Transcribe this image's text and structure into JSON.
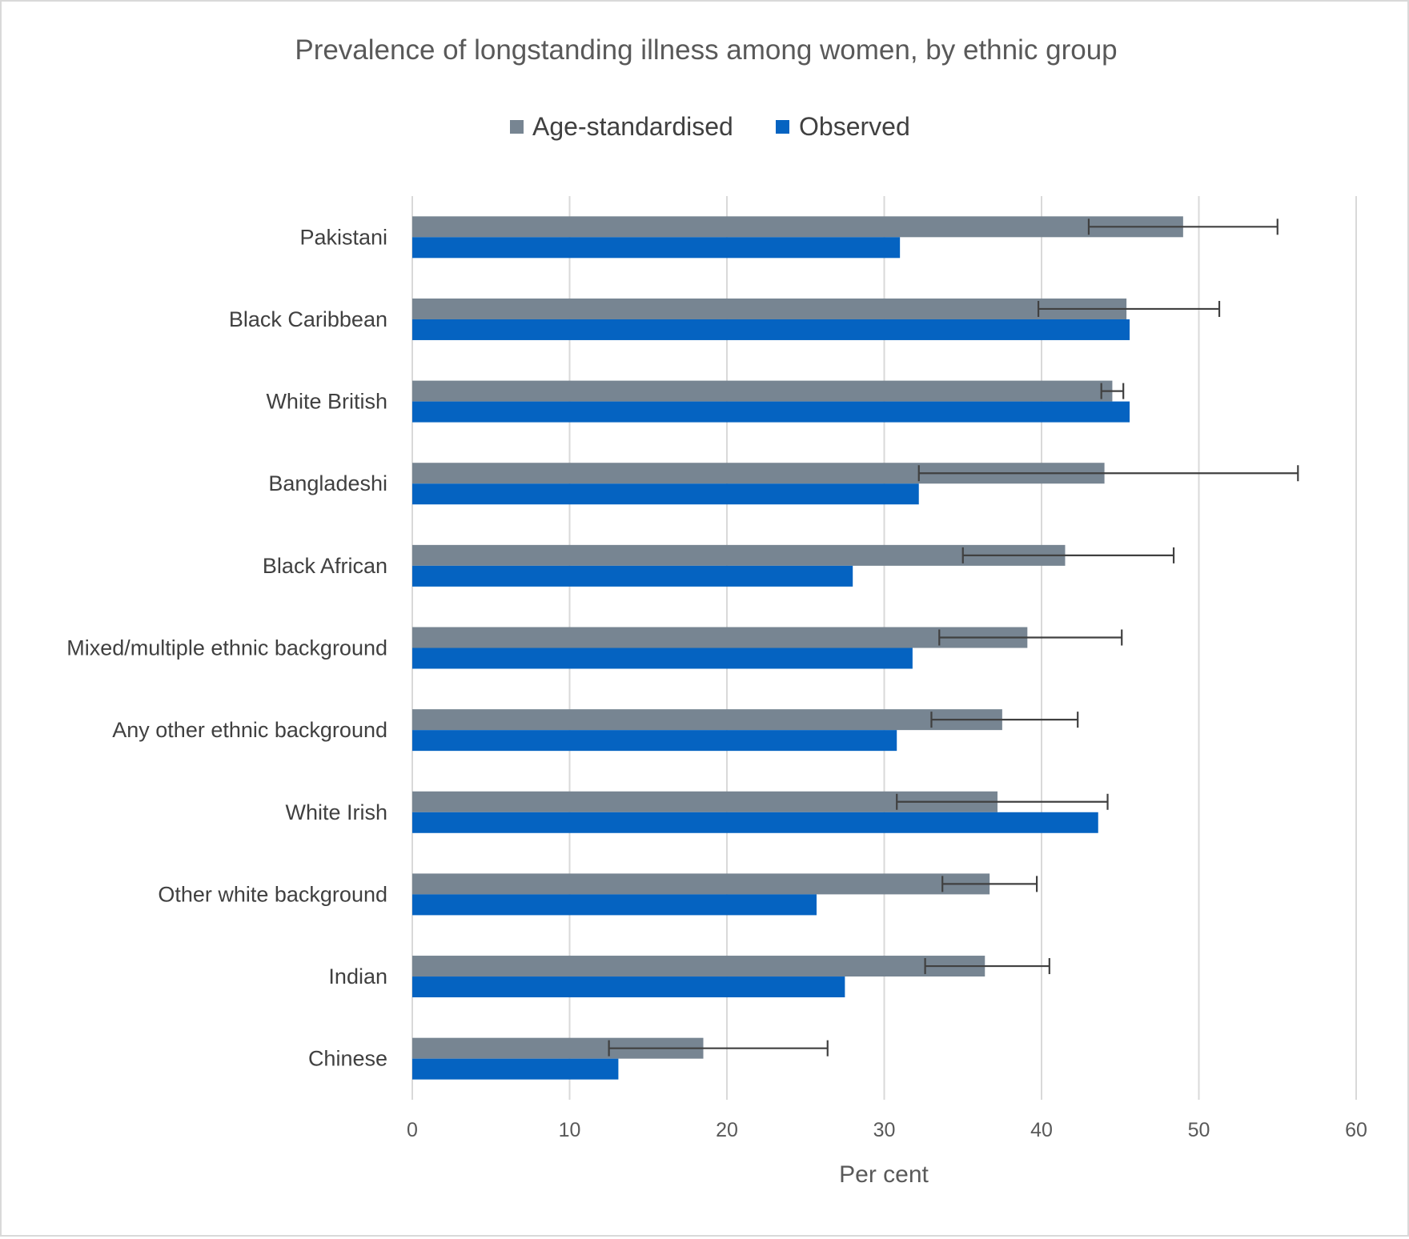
{
  "chart_data": {
    "type": "bar",
    "orientation": "horizontal",
    "title": "Prevalence of longstanding illness among women, by ethnic group",
    "xlabel": "Per cent",
    "ylabel": "",
    "xlim": [
      0,
      60
    ],
    "x_ticks": [
      "0",
      "10",
      "20",
      "30",
      "40",
      "50",
      "60"
    ],
    "grid": true,
    "legend_position": "top",
    "categories": [
      "Pakistani",
      "Black Caribbean",
      "White British",
      "Bangladeshi",
      "Black African",
      "Mixed/multiple ethnic background",
      "Any other ethnic background",
      "White Irish",
      "Other white background",
      "Indian",
      "Chinese"
    ],
    "series": [
      {
        "name": "Age-standardised",
        "color": "#778592",
        "values": [
          49.0,
          45.4,
          44.5,
          44.0,
          41.5,
          39.1,
          37.5,
          37.2,
          36.7,
          36.4,
          18.5
        ],
        "error_low": [
          43.0,
          39.8,
          43.8,
          32.2,
          35.0,
          33.5,
          33.0,
          30.8,
          33.7,
          32.6,
          12.5
        ],
        "error_high": [
          55.0,
          51.3,
          45.2,
          56.3,
          48.4,
          45.1,
          42.3,
          44.2,
          39.7,
          40.5,
          26.4
        ]
      },
      {
        "name": "Observed",
        "color": "#0563c1",
        "values": [
          31.0,
          45.6,
          45.6,
          32.2,
          28.0,
          31.8,
          30.8,
          43.6,
          25.7,
          27.5,
          13.1
        ]
      }
    ],
    "error_bar_color": "#404040",
    "gridline_color": "#d9d9d9"
  }
}
